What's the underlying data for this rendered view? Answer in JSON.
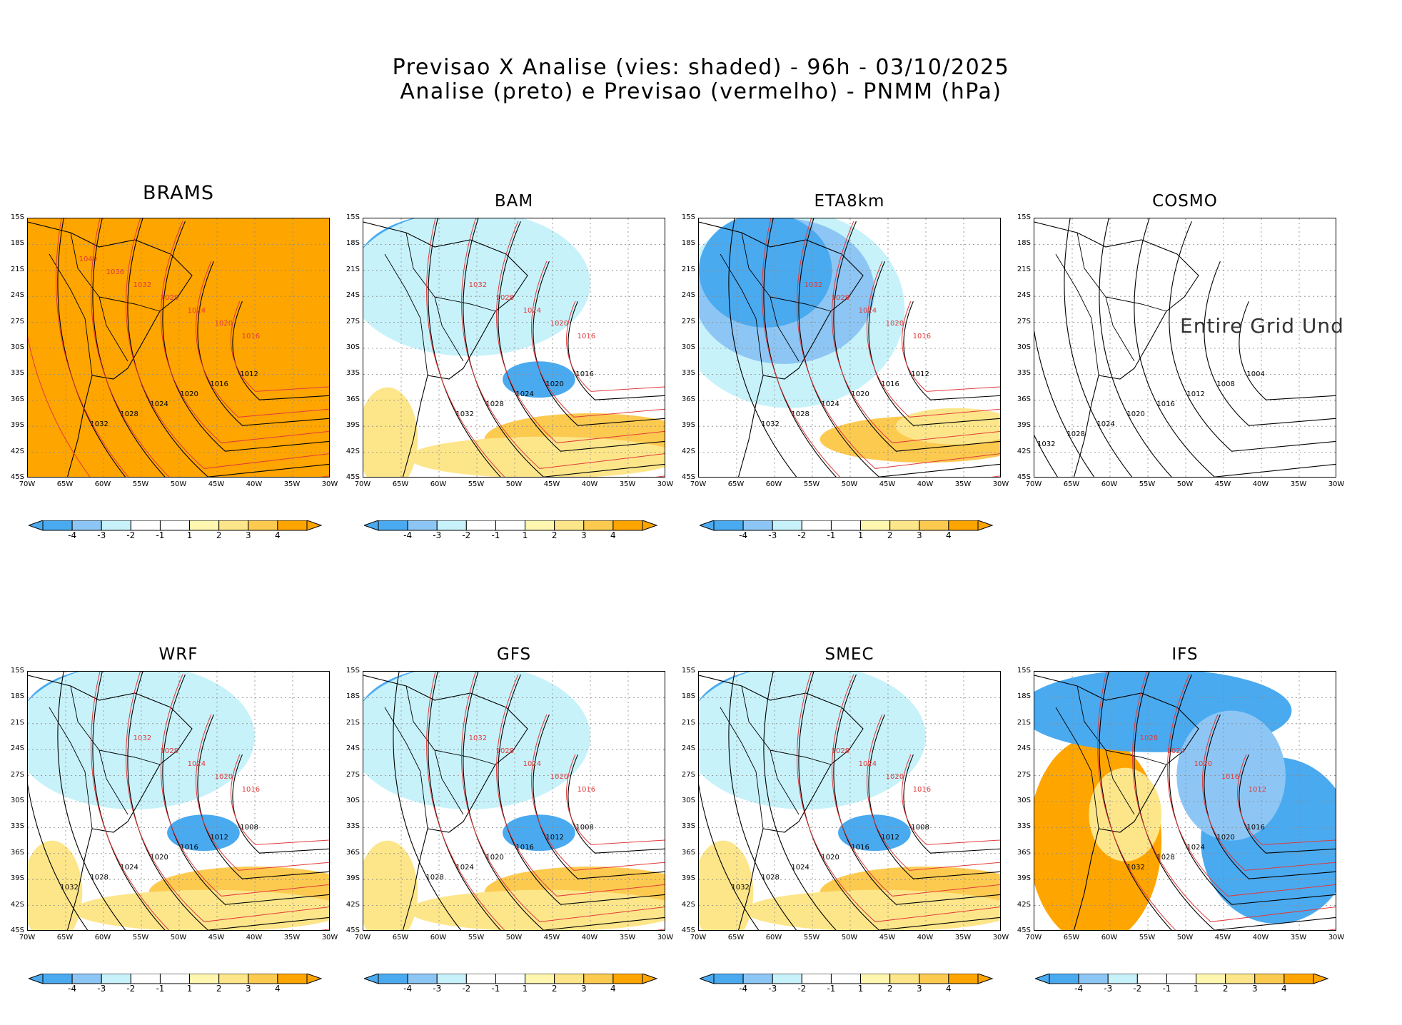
{
  "title_line1": "Previsao X Analise (vies: shaded) - 96h - 03/10/2025",
  "title_line2": "Analise (preto) e Previsao (vermelho) - PNMM (hPa)",
  "colors": {
    "neg4": "#4aaaf0",
    "neg3": "#8dc6f4",
    "neg2": "#c8f2fa",
    "neg1": "#ffffff",
    "pos1": "#fff6b0",
    "pos2": "#fde68a",
    "pos3": "#fdca50",
    "pos4": "#ffa500",
    "analysis_contour": "#000000",
    "forecast_contour": "#e03a3a"
  },
  "lat_ticks": [
    "15S",
    "18S",
    "21S",
    "24S",
    "27S",
    "30S",
    "33S",
    "36S",
    "39S",
    "42S",
    "45S"
  ],
  "lon_ticks": [
    "70W",
    "65W",
    "60W",
    "55W",
    "50W",
    "45W",
    "40W",
    "35W",
    "30W"
  ],
  "colorbar_labels": [
    "-4",
    "-3",
    "-2",
    "-1",
    "1",
    "2",
    "3",
    "4"
  ],
  "chart_data": [
    {
      "type": "heatmap",
      "model": "BRAMS",
      "shading": "all-positive",
      "contours_black": [
        "1012",
        "1016",
        "1020",
        "1024",
        "1028",
        "1032"
      ],
      "contours_red": [
        "1016",
        "1020",
        "1024",
        "1028",
        "1032",
        "1036",
        "1040"
      ],
      "has_colorbar": true,
      "undefined_grid": false
    },
    {
      "type": "heatmap",
      "model": "BAM",
      "shading": "mixed",
      "contours_black": [
        "1016",
        "1020",
        "1024",
        "1028",
        "1032"
      ],
      "contours_red": [
        "1016",
        "1020",
        "1024",
        "1028",
        "1032"
      ],
      "has_colorbar": true,
      "undefined_grid": false
    },
    {
      "type": "heatmap",
      "model": "ETA8km",
      "shading": "negative-north",
      "contours_black": [
        "1012",
        "1016",
        "1020",
        "1024",
        "1028",
        "1032"
      ],
      "contours_red": [
        "1016",
        "1020",
        "1024",
        "1028",
        "1032"
      ],
      "has_colorbar": true,
      "undefined_grid": false
    },
    {
      "type": "heatmap",
      "model": "COSMO",
      "shading": "none",
      "contours_black": [
        "1004",
        "1008",
        "1012",
        "1016",
        "1020",
        "1024",
        "1028",
        "1032"
      ],
      "contours_red": [],
      "has_colorbar": false,
      "undefined_grid": true,
      "undefined_text": "Entire Grid Und"
    },
    {
      "type": "heatmap",
      "model": "WRF",
      "shading": "mixed",
      "contours_black": [
        "1008",
        "1012",
        "1016",
        "1020",
        "1024",
        "1028",
        "1032"
      ],
      "contours_red": [
        "1016",
        "1020",
        "1024",
        "1028",
        "1032"
      ],
      "has_colorbar": true,
      "undefined_grid": false
    },
    {
      "type": "heatmap",
      "model": "GFS",
      "shading": "mixed",
      "contours_black": [
        "1008",
        "1012",
        "1016",
        "1020",
        "1024",
        "1028"
      ],
      "contours_red": [
        "1016",
        "1020",
        "1024",
        "1028",
        "1032"
      ],
      "has_colorbar": true,
      "undefined_grid": false
    },
    {
      "type": "heatmap",
      "model": "SMEC",
      "shading": "mixed",
      "contours_black": [
        "1008",
        "1012",
        "1016",
        "1020",
        "1024",
        "1028",
        "1032"
      ],
      "contours_red": [
        "1016",
        "1020",
        "1024",
        "1028"
      ],
      "has_colorbar": true,
      "undefined_grid": false
    },
    {
      "type": "heatmap",
      "model": "IFS",
      "shading": "dipole",
      "contours_black": [
        "1016",
        "1020",
        "1024",
        "1028",
        "1032"
      ],
      "contours_red": [
        "1012",
        "1016",
        "1020",
        "1024",
        "1028"
      ],
      "has_colorbar": true,
      "undefined_grid": false
    }
  ]
}
